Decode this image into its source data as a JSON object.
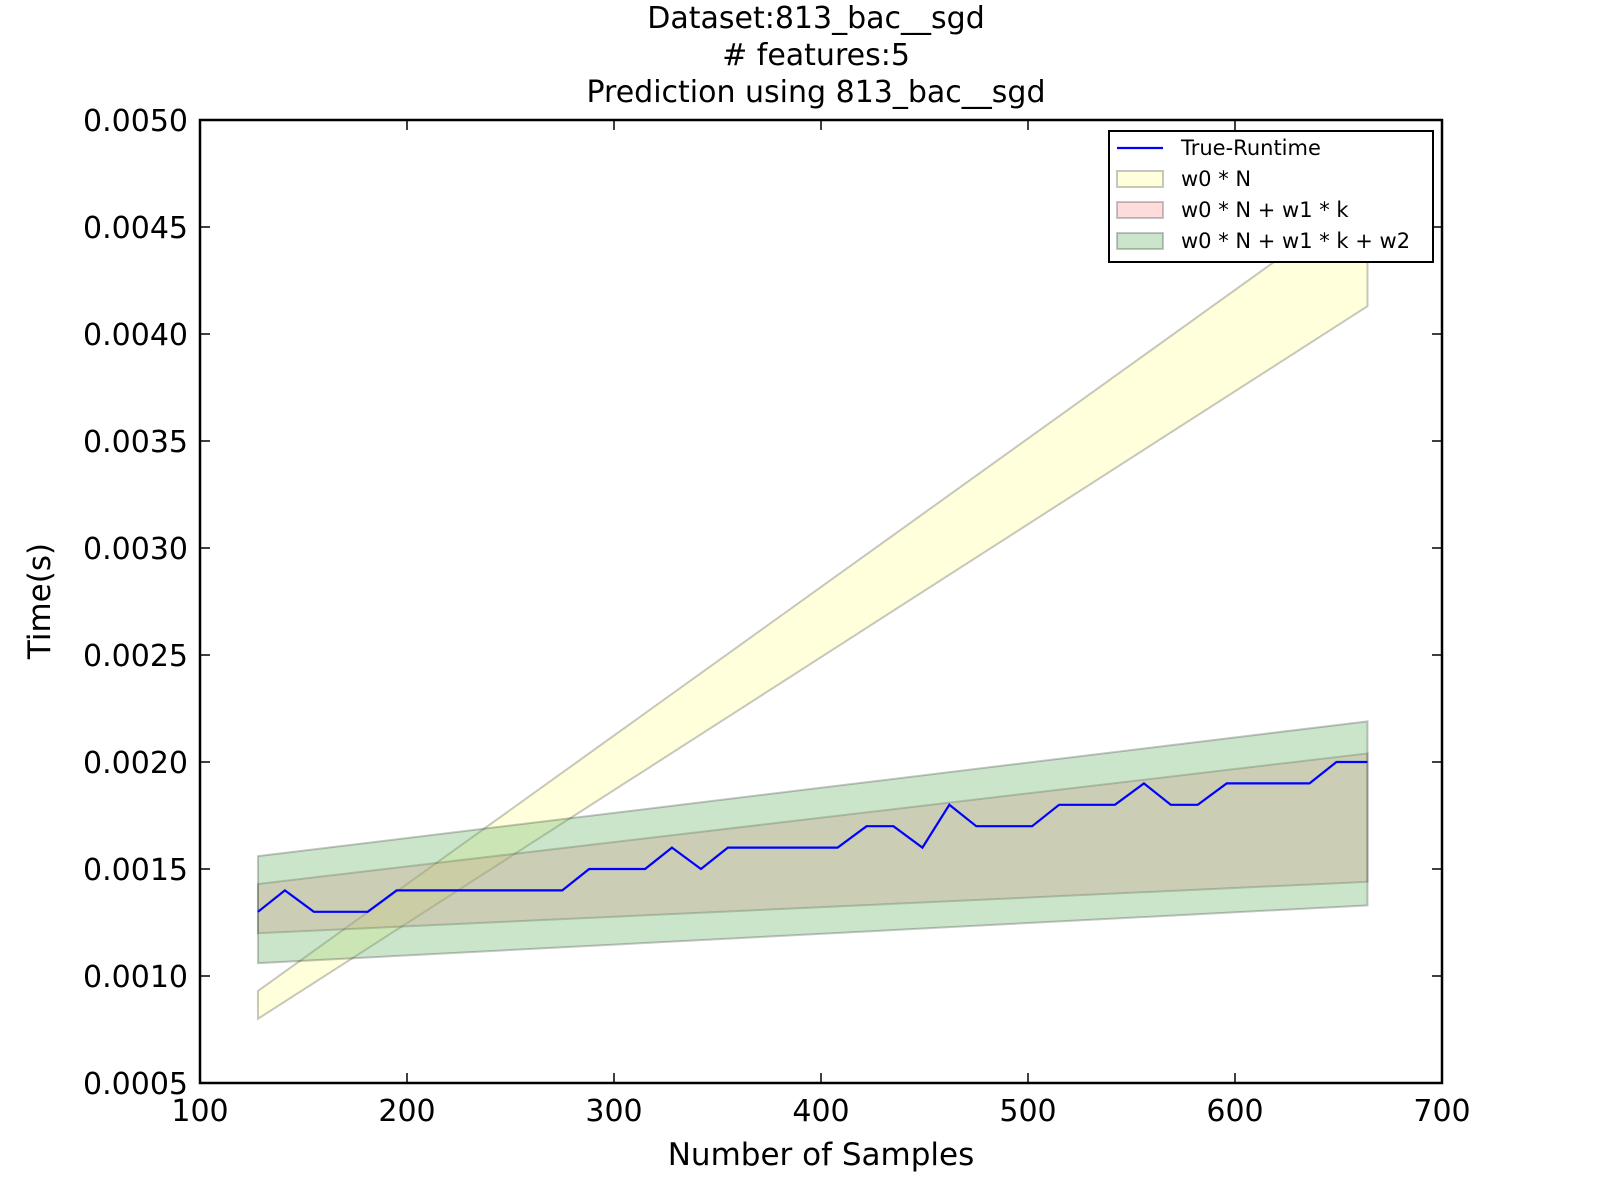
{
  "chart_data": {
    "type": "area",
    "title_lines": [
      "Dataset:813_bac__sgd",
      "# features:5",
      "Prediction using 813_bac__sgd"
    ],
    "xlabel": "Number of Samples",
    "ylabel": "Time(s)",
    "xlim": [
      100,
      700
    ],
    "ylim": [
      0.0005,
      0.005
    ],
    "x_ticks": [
      100,
      200,
      300,
      400,
      500,
      600,
      700
    ],
    "y_ticks": [
      0.0005,
      0.001,
      0.0015,
      0.002,
      0.0025,
      0.003,
      0.0035,
      0.004,
      0.0045,
      0.005
    ],
    "x_tick_labels": [
      "100",
      "200",
      "300",
      "400",
      "500",
      "600",
      "700"
    ],
    "y_tick_labels": [
      "0.0005",
      "0.0010",
      "0.0015",
      "0.0020",
      "0.0025",
      "0.0030",
      "0.0035",
      "0.0040",
      "0.0045",
      "0.0050"
    ],
    "grid": false,
    "legend_position": "top-right",
    "series": [
      {
        "name": "True-Runtime",
        "kind": "line",
        "color": "#0000ff",
        "x": [
          128,
          141,
          155,
          168,
          181,
          195,
          208,
          221,
          235,
          248,
          261,
          275,
          288,
          302,
          315,
          328,
          342,
          355,
          368,
          382,
          395,
          408,
          422,
          435,
          449,
          462,
          475,
          489,
          502,
          515,
          529,
          542,
          556,
          569,
          582,
          596,
          609,
          622,
          636,
          649,
          664
        ],
        "y": [
          0.0013,
          0.0014,
          0.0013,
          0.0013,
          0.0013,
          0.0014,
          0.0014,
          0.0014,
          0.0014,
          0.0014,
          0.0014,
          0.0014,
          0.0015,
          0.0015,
          0.0015,
          0.0016,
          0.0015,
          0.0016,
          0.0016,
          0.0016,
          0.0016,
          0.0016,
          0.0017,
          0.0017,
          0.0016,
          0.0018,
          0.0017,
          0.0017,
          0.0017,
          0.0018,
          0.0018,
          0.0018,
          0.0019,
          0.0018,
          0.0018,
          0.0019,
          0.0019,
          0.0019,
          0.0019,
          0.002,
          0.002
        ]
      },
      {
        "name": "w0 * N",
        "kind": "band",
        "fill": "#ffff99",
        "x": [
          128,
          664
        ],
        "lower": [
          0.0008,
          0.00413
        ],
        "upper": [
          0.00093,
          0.00465
        ]
      },
      {
        "name": "w0 * N + w1 * k",
        "kind": "band",
        "fill": "#ff9999",
        "x": [
          128,
          664
        ],
        "lower": [
          0.0012,
          0.00144
        ],
        "upper": [
          0.00143,
          0.00204
        ]
      },
      {
        "name": "w0 * N + w1 * k + w2",
        "kind": "band",
        "fill": "#66b266",
        "x": [
          128,
          664
        ],
        "lower": [
          0.00106,
          0.00133
        ],
        "upper": [
          0.00156,
          0.00219
        ]
      }
    ]
  }
}
